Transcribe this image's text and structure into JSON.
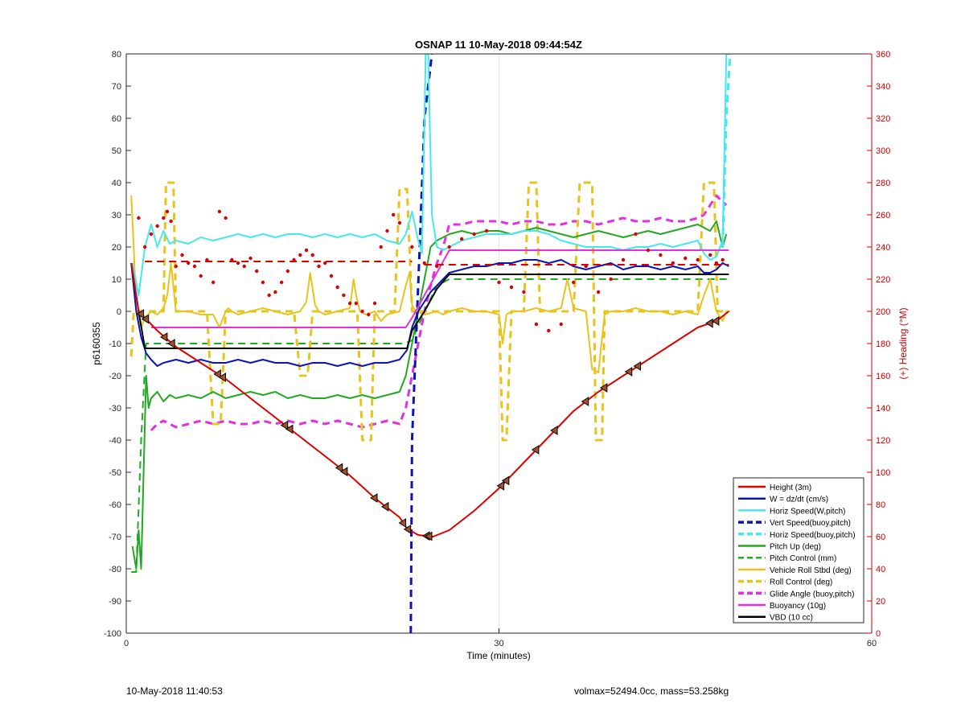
{
  "chart_data": {
    "type": "line",
    "title": "OSNAP 11 10-May-2018 09:44:54Z",
    "xlabel": "Time (minutes)",
    "ylabel": "p6160355",
    "y2label": "(+) Heading (°M)",
    "xlim": [
      0,
      60
    ],
    "ylim": [
      -100,
      80
    ],
    "y2lim": [
      0,
      360
    ],
    "xticks": [
      "0",
      "30",
      "60"
    ],
    "xtick_values": [
      0,
      30,
      60
    ],
    "yticks": [
      "-100",
      "-90",
      "-80",
      "-70",
      "-60",
      "-50",
      "-40",
      "-30",
      "-20",
      "-10",
      "0",
      "10",
      "20",
      "30",
      "40",
      "50",
      "60",
      "70",
      "80"
    ],
    "ytick_values": [
      -100,
      -90,
      -80,
      -70,
      -60,
      -50,
      -40,
      -30,
      -20,
      -10,
      0,
      10,
      20,
      30,
      40,
      50,
      60,
      70,
      80
    ],
    "y2ticks": [
      "0",
      "20",
      "40",
      "60",
      "80",
      "100",
      "120",
      "140",
      "160",
      "180",
      "200",
      "220",
      "240",
      "260",
      "280",
      "300",
      "320",
      "340",
      "360"
    ],
    "y2tick_values": [
      0,
      20,
      40,
      60,
      80,
      100,
      120,
      140,
      160,
      180,
      200,
      220,
      240,
      260,
      280,
      300,
      320,
      340,
      360
    ],
    "grid": "x only",
    "legend_position": "bottom-right",
    "series": [
      {
        "name": "Height (3m)",
        "color": "#dd0000",
        "style": "solid",
        "width": 2,
        "x": [
          0.4,
          1.0,
          1.5,
          2.5,
          4,
          6,
          8,
          10,
          12,
          14,
          16,
          18,
          20,
          22,
          22.6,
          23.5,
          24.7,
          26,
          28,
          30,
          32,
          34,
          36,
          38,
          40,
          42,
          44,
          46,
          47.5,
          48.5
        ],
        "y": [
          15,
          0,
          -2,
          -6,
          -11,
          -16,
          -21,
          -27,
          -33,
          -39,
          -45,
          -51,
          -58,
          -64,
          -67.5,
          -69.5,
          -70,
          -68,
          -62,
          -55,
          -47,
          -39,
          -31,
          -25,
          -20,
          -15,
          -10,
          -5,
          -3,
          0
        ]
      },
      {
        "name": "W = dz/dt (cm/s)",
        "color": "#0a14b8",
        "style": "solid",
        "width": 2,
        "x": [
          0.4,
          0.8,
          1.2,
          1.6,
          2.0,
          2.5,
          3,
          4,
          5,
          6,
          7,
          8,
          9,
          10,
          11,
          12,
          13,
          14,
          15,
          16,
          17,
          18,
          19,
          20,
          21,
          22,
          22.6,
          23.0,
          23.5,
          24.0,
          24.5,
          25,
          26,
          27,
          28,
          29,
          30,
          31,
          32,
          33,
          34,
          35,
          36,
          37,
          38,
          39,
          40,
          41,
          42,
          43,
          44,
          45,
          46,
          46.5,
          47,
          47.5,
          48,
          48.5
        ],
        "y": [
          15,
          0,
          -8,
          -13,
          -15,
          -17,
          -16,
          -15,
          -16,
          -15,
          -16,
          -16,
          -15,
          -16,
          -15,
          -16,
          -16,
          -17,
          -16,
          -16,
          -17,
          -16,
          -17,
          -16,
          -16,
          -15,
          -12,
          -5,
          0,
          3,
          6,
          8,
          12,
          13,
          14,
          14,
          15,
          15,
          16,
          16,
          15,
          16,
          14,
          13,
          14,
          15,
          13,
          14,
          14,
          13,
          14,
          13,
          14,
          12,
          12,
          13,
          15,
          14
        ]
      },
      {
        "name": "Horiz Speed(W,pitch)",
        "color": "#44e8ee",
        "style": "solid",
        "width": 2,
        "x": [
          0.5,
          1.0,
          1.5,
          2.0,
          2.5,
          3,
          3.5,
          4,
          5,
          6,
          7,
          8,
          9,
          10,
          11,
          12,
          13,
          14,
          15,
          16,
          17,
          18,
          19,
          20,
          21,
          22,
          22.5,
          23.0,
          23.5,
          23.8,
          24.1,
          24.3,
          24.6,
          25.0,
          25.5,
          26,
          27,
          28,
          29,
          30,
          31,
          32,
          33,
          34,
          35,
          36,
          37,
          38,
          39,
          40,
          41,
          42,
          43,
          44,
          45,
          46,
          46.5,
          47,
          47.5,
          48.0,
          48.3,
          48.6
        ],
        "y": [
          15,
          5,
          20,
          27,
          20,
          25,
          21,
          22,
          21,
          23,
          22,
          23,
          24,
          23,
          24,
          23,
          24,
          24,
          23,
          24,
          23,
          24,
          23,
          24,
          22,
          21,
          24,
          31,
          22,
          18,
          80,
          80,
          30,
          20,
          19,
          20,
          22,
          23,
          24,
          24,
          24,
          25,
          25,
          24,
          22,
          21,
          20,
          20,
          20,
          19,
          20,
          20,
          21,
          20,
          21,
          22,
          18,
          16,
          17,
          22,
          80,
          80
        ]
      },
      {
        "name": "Vert Speed(buoy,pitch)",
        "color": "#0a14b8",
        "style": "dashed",
        "width": 3,
        "x": [
          22.9,
          23.0,
          23.6,
          24.0,
          24.6
        ],
        "y": [
          -100,
          -40,
          18,
          60,
          80
        ]
      },
      {
        "name": "Horiz Speed(buoy,pitch)",
        "color": "#44e8ee",
        "style": "dashed",
        "width": 3,
        "x": [
          48.0,
          48.3,
          48.6
        ],
        "y": [
          20,
          60,
          80
        ]
      },
      {
        "name": "Pitch Up (deg)",
        "color": "#22a822",
        "style": "solid",
        "width": 2,
        "x": [
          0.5,
          0.8,
          1.0,
          1.2,
          1.4,
          1.6,
          1.8,
          2.0,
          2.5,
          3,
          3.5,
          4,
          5,
          6,
          7,
          8,
          9,
          10,
          11,
          12,
          13,
          14,
          15,
          16,
          17,
          18,
          19,
          20,
          21,
          22,
          22.5,
          23.0,
          23.5,
          24.0,
          24.5,
          25.0,
          25.5,
          26,
          27,
          28,
          29,
          30,
          31,
          32,
          33,
          34,
          35,
          36,
          37,
          38,
          39,
          40,
          41,
          42,
          43,
          44,
          45,
          46,
          46.5,
          47,
          47.5,
          48.0,
          48.3
        ],
        "y": [
          -73,
          -80,
          -68,
          -80,
          -50,
          -20,
          -30,
          -27,
          -25,
          -28,
          -26,
          -27,
          -26,
          -27,
          -25,
          -27,
          -26,
          -25,
          -26,
          -25,
          -27,
          -26,
          -27,
          -27,
          -26,
          -27,
          -26,
          -27,
          -26,
          -25,
          -20,
          -10,
          0,
          10,
          20,
          22,
          23,
          24,
          25,
          24,
          25,
          25,
          24,
          25,
          26,
          25,
          24,
          23,
          24,
          25,
          24,
          23,
          24,
          25,
          24,
          25,
          26,
          27,
          26,
          25,
          28,
          20,
          24
        ]
      },
      {
        "name": "Pitch Control (mm)",
        "color": "#22a822",
        "style": "dashed",
        "width": 2,
        "x": [
          0.4,
          0.8,
          1.2,
          1.6,
          2.0,
          22.4,
          23.0,
          24.0,
          25.0,
          26,
          30,
          48.5
        ],
        "y": [
          -81,
          -81,
          -40,
          -10,
          -10,
          -10,
          -9,
          0,
          8,
          10,
          10,
          10
        ]
      },
      {
        "name": "Vehicle Roll Stbd (deg)",
        "color": "#e6c41c",
        "style": "solid",
        "width": 2,
        "x": [
          0.4,
          0.6,
          0.8,
          1.0,
          1.2,
          1.5,
          2.0,
          2.5,
          3,
          3.3,
          3.6,
          4,
          5,
          6,
          7,
          7.5,
          7.8,
          8.0,
          8.2,
          8.5,
          9,
          10,
          11,
          12,
          13,
          14,
          14.5,
          14.8,
          15.2,
          15.5,
          16,
          17,
          18,
          18.3,
          18.5,
          18.8,
          19.3,
          20,
          20.5,
          21,
          22,
          22.5,
          22.8,
          23.0,
          23.3,
          24,
          25,
          25.5,
          26,
          27,
          28,
          29,
          30,
          30.3,
          30.6,
          31,
          32,
          33,
          34,
          35,
          35.5,
          36,
          37,
          37.5,
          38,
          38.5,
          39,
          40,
          41,
          42,
          43,
          44,
          45,
          46,
          46.5,
          47,
          47.5,
          48,
          48.3,
          48.6
        ],
        "y": [
          36,
          20,
          0,
          -2,
          -5,
          -2,
          0,
          -1,
          1,
          5,
          15,
          0,
          0,
          -1,
          -1,
          -5,
          -2,
          0,
          1,
          0,
          -1,
          0,
          1,
          0,
          -1,
          0,
          3,
          12,
          2,
          0,
          -1,
          0,
          1,
          10,
          5,
          0,
          -1,
          0,
          -3,
          -1,
          0,
          8,
          12,
          2,
          0,
          -1,
          0,
          -1,
          0,
          1,
          0,
          0,
          -1,
          -10,
          -1,
          0,
          0,
          1,
          0,
          1,
          10,
          1,
          0,
          -18,
          -19,
          -1,
          0,
          0,
          1,
          0,
          0,
          -1,
          0,
          -1,
          5,
          10,
          0,
          -3,
          0,
          0
        ]
      },
      {
        "name": "Roll Control (deg)",
        "color": "#e6c41c",
        "style": "dashed",
        "width": 3,
        "x": [
          0.4,
          0.6,
          0.8,
          1.0,
          2.0,
          3.0,
          3.2,
          3.5,
          3.8,
          4.0,
          6.5,
          7.0,
          7.3,
          7.6,
          8.0,
          13.5,
          14.0,
          14.3,
          14.6,
          15.0,
          18.6,
          19.0,
          19.3,
          19.7,
          20.0,
          21.6,
          22.0,
          22.3,
          22.6,
          23.0,
          23.4,
          24.0,
          30.0,
          30.3,
          30.6,
          31.0,
          32.0,
          32.4,
          32.8,
          33.0,
          33.3,
          34.0,
          36.0,
          36.5,
          37.0,
          37.5,
          37.8,
          38.0,
          38.3,
          38.5,
          40.0,
          41.0,
          46.0,
          46.5,
          47.0,
          47.3,
          47.6,
          48.0,
          48.5
        ],
        "y": [
          -14,
          0,
          0,
          0,
          0,
          0,
          40,
          40,
          40,
          0,
          0,
          -35,
          -35,
          -35,
          0,
          0,
          -20,
          -20,
          -20,
          0,
          0,
          -40,
          -40,
          -40,
          0,
          0,
          38,
          38,
          38,
          0,
          0,
          0,
          0,
          -40,
          -40,
          0,
          0,
          40,
          40,
          40,
          0,
          0,
          0,
          40,
          40,
          40,
          -40,
          -40,
          -40,
          0,
          0,
          0,
          0,
          40,
          40,
          40,
          0,
          0,
          0
        ]
      },
      {
        "name": "Glide Angle (buoy,pitch)",
        "color": "#e030e0",
        "style": "dashed",
        "width": 3,
        "x": [
          2.0,
          2.5,
          3,
          4,
          5,
          6,
          7,
          8,
          9,
          10,
          11,
          12,
          13,
          14,
          15,
          16,
          17,
          18,
          19,
          20,
          21,
          22,
          22.5,
          23.0,
          23.5,
          24.0,
          24.5,
          25.0,
          25.5,
          26,
          27,
          28,
          29,
          30,
          31,
          32,
          33,
          34,
          35,
          36,
          37,
          38,
          39,
          40,
          41,
          42,
          43,
          44,
          45,
          46,
          46.5,
          47,
          47.5,
          48.0,
          48.3
        ],
        "y": [
          -37,
          -35,
          -34,
          -36,
          -35,
          -34,
          -35,
          -34,
          -35,
          -35,
          -34,
          -35,
          -34,
          -35,
          -34,
          -35,
          -34,
          -35,
          -36,
          -35,
          -34,
          -35,
          -30,
          -20,
          -10,
          0,
          8,
          15,
          20,
          27,
          27,
          28,
          28,
          28,
          27,
          28,
          28,
          27,
          27,
          28,
          28,
          27,
          28,
          29,
          28,
          28,
          29,
          28,
          28,
          29,
          30,
          33,
          36,
          34,
          33
        ]
      },
      {
        "name": "Buoyancy (10g)",
        "color": "#e030e0",
        "style": "solid",
        "width": 2,
        "x": [
          2.0,
          22.5,
          23.0,
          24.0,
          25.0,
          26.0,
          48.5
        ],
        "y": [
          -5,
          -5,
          -2,
          5,
          12,
          19,
          19
        ]
      },
      {
        "name": "VBD (10 cc)",
        "color": "#000000",
        "style": "solid",
        "width": 2,
        "x": [
          0.4,
          1.0,
          1.5,
          2.0,
          22.6,
          23.0,
          24.0,
          25.0,
          26.0,
          48.5
        ],
        "y": [
          15,
          0,
          -11.5,
          -11.5,
          -11.5,
          -6,
          0,
          7,
          11.5,
          11.5
        ]
      }
    ],
    "heading_points": {
      "name": "Heading",
      "color": "#dd0000",
      "axis": "right",
      "x": [
        1.0,
        1.5,
        2.0,
        2.5,
        3.0,
        3.3,
        3.6,
        4.0,
        4.5,
        5.0,
        5.5,
        6.0,
        6.5,
        7.0,
        7.5,
        8.0,
        8.5,
        9.0,
        9.5,
        10.0,
        10.5,
        11.0,
        11.5,
        12.0,
        12.5,
        13.0,
        13.5,
        14.0,
        14.5,
        15.0,
        15.5,
        16.0,
        16.5,
        17.0,
        17.5,
        18.0,
        18.5,
        19.0,
        19.5,
        20.0,
        20.5,
        21.0,
        21.5,
        22.0,
        23.0,
        24.0,
        25.0,
        26.0,
        27.0,
        28.0,
        29.0,
        30.0,
        31.0,
        32.0,
        33.0,
        34.0,
        35.0,
        36.0,
        37.0,
        38.0,
        39.0,
        40.0,
        41.0,
        42.0,
        43.0,
        44.0,
        45.0,
        46.0,
        47.0,
        47.5,
        48.0
      ],
      "y": [
        258,
        240,
        248,
        253,
        258,
        262,
        256,
        228,
        235,
        230,
        228,
        222,
        232,
        218,
        262,
        258,
        232,
        230,
        228,
        233,
        225,
        218,
        210,
        212,
        218,
        225,
        232,
        235,
        238,
        235,
        228,
        230,
        222,
        215,
        210,
        205,
        205,
        200,
        198,
        205,
        240,
        250,
        260,
        255,
        240,
        230,
        228,
        240,
        245,
        248,
        250,
        218,
        215,
        212,
        192,
        188,
        192,
        218,
        228,
        212,
        220,
        232,
        248,
        238,
        235,
        230,
        233,
        232,
        235,
        230,
        232
      ]
    }
  },
  "footer": {
    "left": "10-May-2018 11:40:53",
    "right": "volmax=52494.0cc, mass=53.258kg"
  },
  "right_marks": {
    "note": "triangle markers on Height line",
    "x": [
      1.2,
      1.6,
      3.1,
      3.7,
      7.4,
      7.8,
      12.8,
      13.2,
      17.2,
      17.6,
      20.0,
      20.9,
      22.3,
      22.7,
      24.2,
      24.4,
      30.2,
      30.6,
      33.0,
      34.5,
      37.0,
      38.5,
      40.5,
      41.2,
      47.0,
      47.5
    ]
  }
}
